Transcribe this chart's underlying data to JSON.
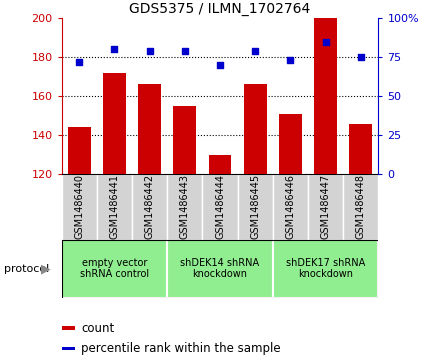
{
  "title": "GDS5375 / ILMN_1702764",
  "samples": [
    "GSM1486440",
    "GSM1486441",
    "GSM1486442",
    "GSM1486443",
    "GSM1486444",
    "GSM1486445",
    "GSM1486446",
    "GSM1486447",
    "GSM1486448"
  ],
  "counts": [
    144,
    172,
    166,
    155,
    130,
    166,
    151,
    200,
    146
  ],
  "percentiles": [
    72,
    80,
    79,
    79,
    70,
    79,
    73,
    85,
    75
  ],
  "ylim_left": [
    120,
    200
  ],
  "ylim_right": [
    0,
    100
  ],
  "yticks_left": [
    120,
    140,
    160,
    180,
    200
  ],
  "yticks_right": [
    0,
    25,
    50,
    75,
    100
  ],
  "ytick_labels_left": [
    "120",
    "140",
    "160",
    "180",
    "200"
  ],
  "ytick_labels_right": [
    "0",
    "25",
    "50",
    "75",
    "100%"
  ],
  "bar_color": "#CC0000",
  "dot_color": "#0000CC",
  "protocols": [
    {
      "label": "empty vector\nshRNA control",
      "start": 0,
      "end": 3,
      "color": "#90EE90"
    },
    {
      "label": "shDEK14 shRNA\nknockdown",
      "start": 3,
      "end": 6,
      "color": "#90EE90"
    },
    {
      "label": "shDEK17 shRNA\nknockdown",
      "start": 6,
      "end": 9,
      "color": "#90EE90"
    }
  ],
  "legend_count_label": "count",
  "legend_pct_label": "percentile rank within the sample",
  "protocol_label": "protocol",
  "plot_bg_color": "#ffffff",
  "sample_cell_color": "#d3d3d3",
  "grid_yticks": [
    140,
    160,
    180
  ]
}
